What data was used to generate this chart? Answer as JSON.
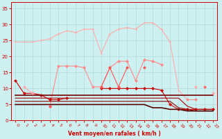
{
  "xlabel": "Vent moyen/en rafales ( km/h )",
  "x": [
    0,
    1,
    2,
    3,
    4,
    5,
    6,
    7,
    8,
    9,
    10,
    11,
    12,
    13,
    14,
    15,
    16,
    17,
    18,
    19,
    20,
    21,
    22,
    23
  ],
  "series": [
    {
      "color": "#ffaaaa",
      "lw": 0.8,
      "marker": "+",
      "ms": 3,
      "y": [
        24.5,
        24.5,
        24.5,
        25.0,
        25.5,
        27.0,
        28.0,
        27.5,
        28.5,
        28.5,
        21.0,
        27.0,
        28.5,
        29.0,
        28.5,
        30.5,
        30.5,
        28.5,
        24.5,
        9.5,
        6.5,
        null,
        null,
        null
      ]
    },
    {
      "color": "#ff8888",
      "lw": 0.8,
      "marker": "D",
      "ms": 2,
      "y": [
        null,
        null,
        null,
        null,
        4.5,
        17.0,
        17.0,
        17.0,
        16.5,
        10.5,
        10.5,
        16.5,
        18.5,
        18.5,
        12.5,
        19.0,
        18.5,
        17.5,
        null,
        null,
        null,
        null,
        null,
        null
      ]
    },
    {
      "color": "#cc0000",
      "lw": 0.8,
      "marker": "D",
      "ms": 2,
      "y": [
        12.5,
        8.5,
        8.5,
        8.0,
        6.5,
        6.5,
        7.0,
        null,
        null,
        null,
        null,
        null,
        null,
        null,
        null,
        null,
        null,
        null,
        null,
        null,
        null,
        null,
        null,
        null
      ]
    },
    {
      "color": "#cc0000",
      "lw": 0.8,
      "marker": "D",
      "ms": 2,
      "y": [
        null,
        null,
        null,
        null,
        null,
        null,
        null,
        null,
        null,
        null,
        10.0,
        10.0,
        10.0,
        10.0,
        10.0,
        10.0,
        10.0,
        9.5,
        5.0,
        3.5,
        3.5,
        3.5,
        3.5,
        3.5
      ]
    },
    {
      "color": "#ff5555",
      "lw": 0.8,
      "marker": "D",
      "ms": 2,
      "y": [
        null,
        null,
        null,
        null,
        4.5,
        null,
        null,
        null,
        null,
        null,
        10.5,
        16.5,
        10.5,
        16.5,
        null,
        16.5,
        null,
        null,
        null,
        null,
        null,
        null,
        null,
        null
      ]
    },
    {
      "color": "#770000",
      "lw": 1.2,
      "marker": null,
      "ms": 0,
      "y": [
        8.0,
        8.0,
        8.0,
        8.0,
        8.0,
        8.0,
        8.0,
        8.0,
        8.0,
        8.0,
        8.0,
        8.0,
        8.0,
        8.0,
        8.0,
        8.0,
        8.0,
        8.0,
        8.0,
        8.0,
        8.0,
        8.0,
        8.0,
        8.0
      ]
    },
    {
      "color": "#aa0000",
      "lw": 0.8,
      "marker": null,
      "ms": 0,
      "y": [
        7.0,
        7.0,
        7.0,
        7.0,
        7.0,
        7.0,
        7.0,
        7.0,
        7.0,
        7.0,
        7.0,
        7.0,
        7.0,
        7.0,
        7.0,
        7.0,
        7.0,
        7.0,
        7.0,
        7.0,
        4.5,
        3.5,
        3.5,
        3.5
      ]
    },
    {
      "color": "#880000",
      "lw": 0.8,
      "marker": null,
      "ms": 0,
      "y": [
        6.0,
        6.0,
        6.0,
        6.0,
        6.0,
        6.0,
        6.0,
        6.0,
        6.0,
        6.0,
        6.0,
        6.0,
        6.0,
        6.0,
        6.0,
        6.0,
        6.0,
        6.0,
        6.0,
        4.0,
        3.5,
        3.0,
        3.0,
        3.0
      ]
    },
    {
      "color": "#550000",
      "lw": 1.2,
      "marker": null,
      "ms": 0,
      "y": [
        5.0,
        5.0,
        5.0,
        5.0,
        5.0,
        5.0,
        5.0,
        5.0,
        5.0,
        5.0,
        5.0,
        5.0,
        5.0,
        5.0,
        5.0,
        5.0,
        4.0,
        4.0,
        3.5,
        3.5,
        3.0,
        3.0,
        3.0,
        3.0
      ]
    },
    {
      "color": "#ffaaaa",
      "lw": 0.8,
      "marker": "D",
      "ms": 2,
      "y": [
        null,
        10.5,
        8.5,
        null,
        null,
        null,
        null,
        null,
        null,
        null,
        null,
        null,
        null,
        null,
        null,
        null,
        null,
        null,
        null,
        null,
        null,
        10.5,
        null,
        8.5
      ]
    },
    {
      "color": "#ff8888",
      "lw": 0.8,
      "marker": "D",
      "ms": 2,
      "y": [
        null,
        null,
        null,
        null,
        null,
        null,
        null,
        null,
        null,
        null,
        null,
        null,
        null,
        null,
        null,
        null,
        null,
        null,
        null,
        null,
        6.5,
        6.5,
        null,
        null
      ]
    },
    {
      "color": "#ff6666",
      "lw": 0.8,
      "marker": "D",
      "ms": 2,
      "y": [
        null,
        null,
        null,
        null,
        null,
        null,
        null,
        null,
        null,
        null,
        null,
        null,
        null,
        null,
        null,
        null,
        null,
        null,
        null,
        null,
        null,
        null,
        10.5,
        null
      ]
    }
  ],
  "ylim": [
    0,
    37
  ],
  "xlim": [
    -0.5,
    23.5
  ],
  "yticks": [
    0,
    5,
    10,
    15,
    20,
    25,
    30,
    35
  ],
  "xticks": [
    0,
    1,
    2,
    3,
    4,
    5,
    6,
    7,
    8,
    9,
    10,
    11,
    12,
    13,
    14,
    15,
    16,
    17,
    18,
    19,
    20,
    21,
    22,
    23
  ],
  "bg_color": "#cff0f0",
  "grid_color": "#aadddd",
  "tick_color": "#cc0000",
  "label_color": "#cc0000",
  "spine_color": "#cc0000"
}
